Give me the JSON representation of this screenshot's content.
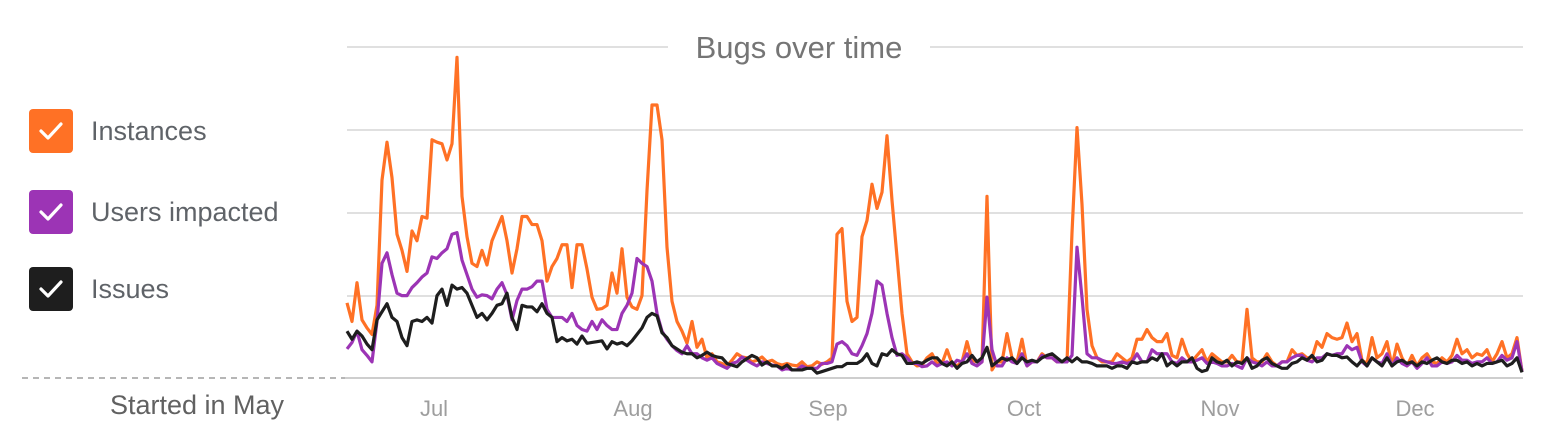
{
  "legend": {
    "items": [
      {
        "label": "Instances",
        "color": "#ff7125",
        "checked": true
      },
      {
        "label": "Users impacted",
        "color": "#9c34b5",
        "checked": true
      },
      {
        "label": "Issues",
        "color": "#1e1e1e",
        "checked": true
      }
    ]
  },
  "check_icon": "check-icon",
  "chart_data": {
    "type": "line",
    "title": "Bugs over time",
    "start_label": "Started in May",
    "x_tick_labels": [
      "Jul",
      "Aug",
      "Sep",
      "Oct",
      "Nov",
      "Dec"
    ],
    "grid": true,
    "ylim": [
      0,
      395
    ],
    "series": [
      {
        "name": "Instances",
        "color": "#ff7125",
        "values": [
          93,
          70,
          118,
          72,
          62,
          54,
          90,
          245,
          292,
          248,
          178,
          158,
          132,
          182,
          170,
          200,
          198,
          295,
          292,
          290,
          270,
          290,
          397,
          225,
          175,
          142,
          138,
          158,
          140,
          170,
          185,
          200,
          170,
          130,
          160,
          200,
          200,
          190,
          190,
          170,
          120,
          138,
          148,
          165,
          165,
          112,
          165,
          165,
          135,
          100,
          85,
          86,
          90,
          130,
          105,
          160,
          100,
          88,
          85,
          102,
          232,
          338,
          338,
          295,
          162,
          95,
          70,
          58,
          43,
          70,
          38,
          48,
          25,
          30,
          20,
          18,
          15,
          22,
          30,
          26,
          25,
          20,
          22,
          26,
          20,
          22,
          18,
          16,
          18,
          16,
          15,
          20,
          14,
          15,
          20,
          17,
          20,
          25,
          178,
          185,
          95,
          70,
          75,
          175,
          195,
          240,
          210,
          230,
          300,
          220,
          150,
          80,
          30,
          20,
          15,
          16,
          25,
          30,
          18,
          18,
          35,
          18,
          15,
          20,
          45,
          22,
          20,
          20,
          225,
          10,
          20,
          20,
          55,
          25,
          20,
          48,
          15,
          20,
          20,
          30,
          25,
          25,
          20,
          20,
          20,
          180,
          310,
          215,
          85,
          40,
          25,
          20,
          20,
          20,
          30,
          25,
          20,
          25,
          48,
          48,
          60,
          50,
          45,
          45,
          55,
          28,
          25,
          48,
          30,
          20,
          28,
          35,
          20,
          30,
          25,
          20,
          20,
          28,
          20,
          20,
          85,
          25,
          20,
          20,
          30,
          20,
          15,
          20,
          20,
          35,
          28,
          30,
          25,
          25,
          45,
          38,
          55,
          50,
          48,
          50,
          68,
          45,
          55,
          22,
          18,
          50,
          25,
          30,
          45,
          15,
          42,
          25,
          15,
          28,
          15,
          25,
          30,
          20,
          18,
          25,
          20,
          28,
          48,
          30,
          35,
          25,
          30,
          28,
          35,
          20,
          30,
          45,
          25,
          30,
          50,
          8
        ]
      },
      {
        "name": "Users impacted",
        "color": "#9c34b5",
        "values": [
          36,
          44,
          58,
          35,
          28,
          20,
          70,
          142,
          155,
          128,
          105,
          102,
          102,
          112,
          118,
          125,
          130,
          150,
          148,
          155,
          160,
          178,
          180,
          146,
          128,
          110,
          100,
          103,
          102,
          98,
          110,
          118,
          103,
          72,
          96,
          110,
          110,
          113,
          120,
          120,
          85,
          75,
          75,
          75,
          70,
          80,
          65,
          60,
          58,
          70,
          60,
          72,
          65,
          60,
          60,
          80,
          90,
          105,
          148,
          142,
          138,
          120,
          80,
          58,
          48,
          40,
          34,
          30,
          40,
          30,
          30,
          25,
          22,
          25,
          18,
          15,
          12,
          18,
          20,
          26,
          22,
          18,
          15,
          20,
          18,
          16,
          15,
          10,
          12,
          10,
          10,
          15,
          12,
          12,
          12,
          18,
          18,
          20,
          42,
          45,
          40,
          30,
          28,
          40,
          55,
          80,
          120,
          115,
          80,
          50,
          28,
          30,
          25,
          18,
          18,
          14,
          15,
          20,
          15,
          18,
          20,
          15,
          22,
          20,
          30,
          18,
          15,
          20,
          100,
          35,
          15,
          15,
          25,
          20,
          18,
          30,
          15,
          20,
          20,
          28,
          25,
          25,
          20,
          20,
          20,
          28,
          162,
          100,
          30,
          25,
          25,
          22,
          20,
          18,
          18,
          20,
          18,
          20,
          30,
          20,
          20,
          35,
          30,
          30,
          30,
          20,
          18,
          25,
          20,
          20,
          22,
          25,
          18,
          20,
          18,
          15,
          15,
          18,
          15,
          12,
          25,
          20,
          18,
          15,
          20,
          15,
          15,
          20,
          20,
          25,
          28,
          28,
          22,
          20,
          25,
          25,
          30,
          28,
          30,
          30,
          40,
          35,
          38,
          20,
          15,
          25,
          20,
          18,
          30,
          15,
          25,
          18,
          15,
          20,
          12,
          18,
          25,
          15,
          15,
          20,
          18,
          20,
          28,
          22,
          22,
          18,
          20,
          20,
          25,
          18,
          20,
          28,
          22,
          25,
          45,
          8
        ]
      },
      {
        "name": "Issues",
        "color": "#1e1e1e",
        "values": [
          58,
          48,
          58,
          52,
          42,
          35,
          72,
          82,
          92,
          75,
          70,
          50,
          40,
          70,
          72,
          70,
          75,
          68,
          102,
          110,
          90,
          115,
          110,
          112,
          105,
          90,
          75,
          80,
          72,
          80,
          90,
          92,
          105,
          75,
          60,
          90,
          88,
          88,
          82,
          92,
          80,
          75,
          45,
          50,
          46,
          48,
          42,
          52,
          43,
          44,
          45,
          46,
          36,
          45,
          42,
          44,
          40,
          46,
          54,
          62,
          75,
          80,
          77,
          56,
          50,
          40,
          36,
          32,
          30,
          30,
          25,
          28,
          32,
          28,
          26,
          25,
          18,
          16,
          14,
          20,
          24,
          28,
          25,
          16,
          20,
          15,
          15,
          12,
          16,
          10,
          10,
          10,
          12,
          12,
          6,
          8,
          10,
          12,
          14,
          14,
          18,
          18,
          18,
          22,
          30,
          18,
          15,
          30,
          28,
          35,
          30,
          28,
          18,
          18,
          20,
          18,
          22,
          25,
          25,
          18,
          15,
          20,
          12,
          18,
          20,
          28,
          20,
          25,
          38,
          15,
          20,
          25,
          22,
          25,
          18,
          25,
          20,
          22,
          20,
          25,
          28,
          30,
          25,
          20,
          25,
          20,
          25,
          20,
          20,
          18,
          15,
          15,
          15,
          12,
          15,
          15,
          12,
          20,
          18,
          20,
          20,
          25,
          22,
          30,
          15,
          20,
          15,
          20,
          20,
          25,
          12,
          8,
          10,
          25,
          20,
          18,
          22,
          15,
          20,
          18,
          25,
          12,
          15,
          22,
          25,
          18,
          15,
          12,
          12,
          18,
          20,
          25,
          22,
          28,
          20,
          22,
          30,
          28,
          28,
          25,
          26,
          20,
          15,
          22,
          15,
          25,
          20,
          15,
          25,
          15,
          20,
          22,
          18,
          20,
          15,
          20,
          18,
          22,
          25,
          20,
          18,
          22,
          22,
          18,
          20,
          15,
          18,
          15,
          18,
          18,
          20,
          22,
          15,
          18,
          25,
          7
        ]
      }
    ]
  }
}
